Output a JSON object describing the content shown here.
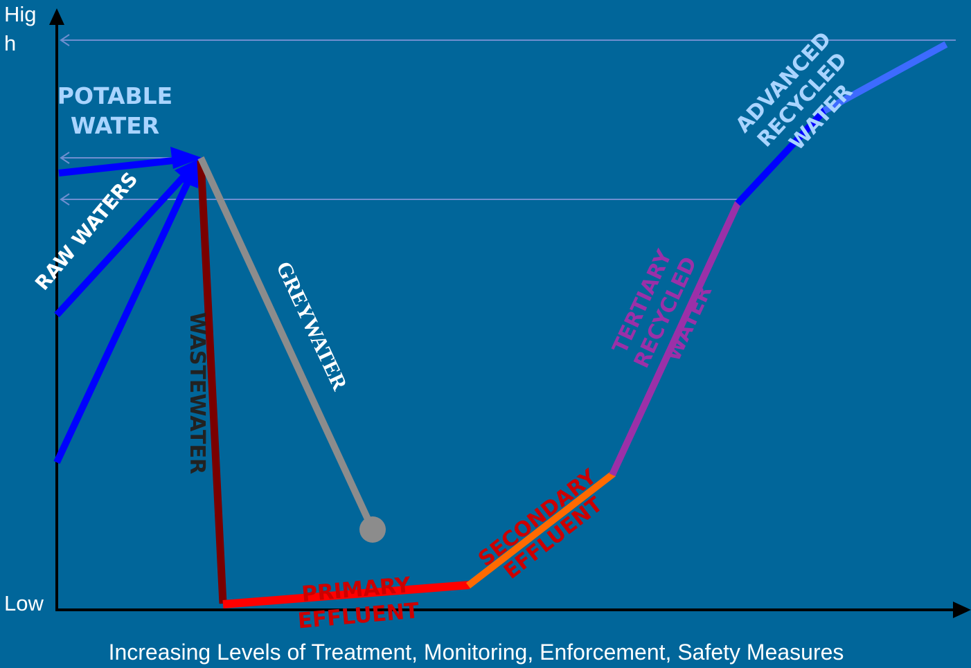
{
  "axes": {
    "y_high_label": "Hig h",
    "y_low_label": "Low",
    "x_label": "Increasing Levels of Treatment, Monitoring, Enforcement, Safety Measures"
  },
  "labels": {
    "potable_water": [
      "POTABLE",
      "WATER"
    ],
    "raw_waters": "RAW WATERS",
    "wastewater": "WASTEWATER",
    "greywater": "GREYWATER",
    "primary_effluent": [
      "PRIMARY",
      "EFFLUENT"
    ],
    "secondary_effluent": [
      "SECONDARY",
      "EFFLUENT"
    ],
    "tertiary_recycled_water": [
      "TERTIARY",
      "RECYCLED",
      "WATER"
    ],
    "advanced_recycled_water": [
      "ADVANCED",
      "RECYCLED",
      "WATER"
    ]
  },
  "colors": {
    "background": "#01669a",
    "axis": "#000000",
    "raw_waters": "#0000ff",
    "potable_label": "#a9d4ff",
    "wastewater": "#7a0000",
    "wastewater_label": "#222222",
    "greywater": "#8c8c8c",
    "greywater_label": "#ffffff",
    "primary_effluent": "#ff0000",
    "primary_label": "#cc0000",
    "secondary_effluent": "#ff6a00",
    "secondary_label": "#cc0000",
    "tertiary": "#9b30a8",
    "tertiary_label": "#9b30a8",
    "advanced_blue": "#0000ff",
    "advanced_light": "#3d6bff",
    "advanced_label": "#a9d4ff",
    "guide_lines": "#6f8fd0"
  }
}
